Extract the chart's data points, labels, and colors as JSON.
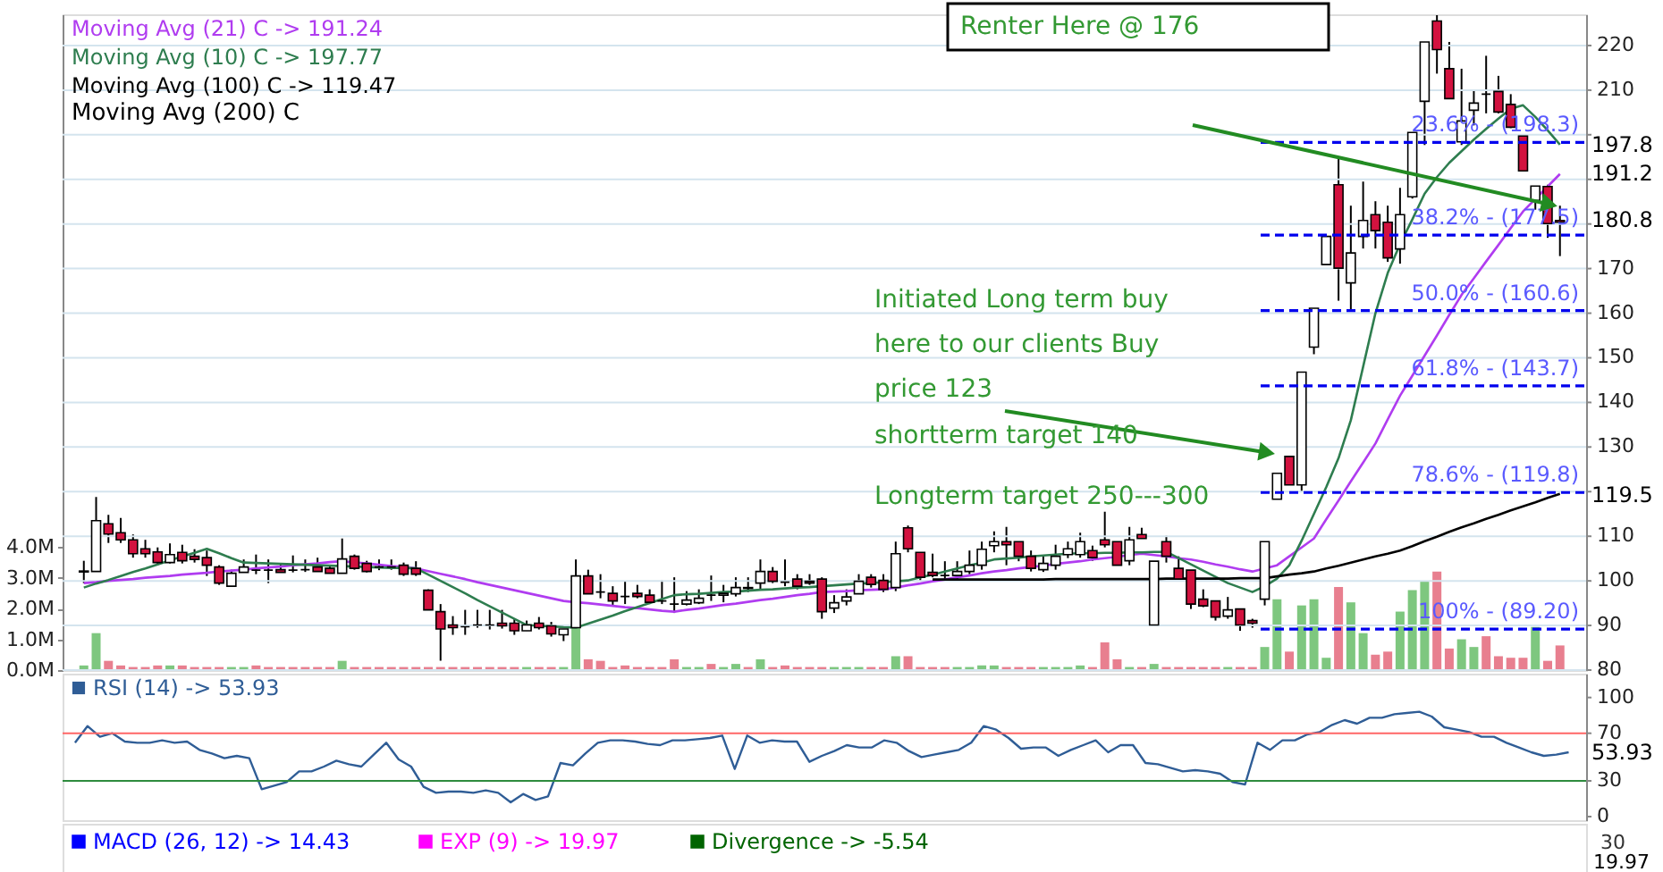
{
  "chart_data": [
    {
      "type": "candlestick",
      "colors": [
        "#ffffff",
        "#ffffff",
        "#d2123f",
        "#d2123f",
        "#d2123f",
        "#d2123f",
        "#d2123f",
        "#ffffff",
        "#d2123f",
        "#d2123f",
        "#d2123f",
        "#d2123f",
        "#ffffff",
        "#ffffff",
        "#000000",
        "#000000",
        "#d2123f",
        "#000000",
        "#000000",
        "#d2123f",
        "#d2123f",
        "#ffffff",
        "#d2123f",
        "#d2123f",
        "#000000",
        "#000000",
        "#d2123f",
        "#d2123f",
        "#d2123f",
        "#d2123f",
        "#d2123f",
        "#000000",
        "#000000",
        "#000000",
        "#d2123f",
        "#d2123f",
        "#ffffff",
        "#d2123f",
        "#d2123f",
        "#ffffff",
        "#ffffff",
        "#d2123f",
        "#000000",
        "#d2123f",
        "#000000",
        "#d2123f",
        "#d2123f",
        "#000000",
        "#000000",
        "#ffffff",
        "#ffffff",
        "#000000",
        "#ffffff",
        "#ffffff",
        "#d2123f",
        "#ffffff",
        "#d2123f",
        "#000000",
        "#d2123f",
        "#d2123f",
        "#d2123f",
        "#ffffff",
        "#ffffff",
        "#ffffff",
        "#d2123f",
        "#d2123f",
        "#ffffff",
        "#d2123f",
        "#d2123f",
        "#d2123f",
        "#000000",
        "#ffffff",
        "#ffffff",
        "#ffffff",
        "#ffffff",
        "#d2123f",
        "#d2123f",
        "#d2123f",
        "#ffffff",
        "#ffffff",
        "#ffffff",
        "#ffffff",
        "#d2123f",
        "#d2123f",
        "#d2123f",
        "#ffffff",
        "#d2123f",
        "#ffffff",
        "#d2123f",
        "#d2123f",
        "#d2123f",
        "#d2123f",
        "#d2123f",
        "#ffffff",
        "#d2123f",
        "#d2123f",
        "#ffffff",
        "#ffffff",
        "#d2123f",
        "#ffffff",
        "#ffffff",
        "#ffffff",
        "#d2123f",
        "#ffffff",
        "#ffffff",
        "#d2123f",
        "#d2123f",
        "#ffffff",
        "#ffffff",
        "#ffffff",
        "#d2123f",
        "#d2123f",
        "#ffffff",
        "#ffffff",
        "#000000",
        "#d2123f",
        "#d2123f",
        "#d2123f",
        "#ffffff",
        "#d2123f",
        "#d2123f"
      ],
      "categories": [
        null,
        null,
        null,
        null,
        null,
        null,
        null,
        null,
        null,
        null,
        null,
        null,
        null,
        null,
        null,
        null,
        null,
        null,
        null,
        null,
        null,
        null,
        null,
        null,
        null,
        null,
        null,
        null,
        null,
        null,
        null,
        null,
        null,
        null,
        null,
        null,
        null,
        null,
        null,
        null,
        null,
        null,
        null,
        null,
        null,
        null,
        null,
        null,
        null,
        null,
        null,
        null,
        null,
        null,
        null,
        null,
        null,
        null,
        null,
        null,
        null,
        null,
        null,
        null,
        null,
        null,
        null,
        null,
        null,
        null,
        null,
        null,
        null,
        null,
        null,
        null,
        null,
        null,
        null,
        null,
        null,
        null,
        null,
        null,
        null,
        null,
        null,
        null,
        null,
        null,
        null,
        null,
        null,
        null,
        null,
        null,
        null,
        null,
        null,
        null,
        null,
        null,
        null,
        null,
        null,
        null,
        null,
        null,
        null,
        null,
        null,
        null,
        null,
        null,
        null,
        null,
        null,
        null,
        null,
        null,
        null
      ],
      "ohlc": [
        [
          102,
          104.5,
          99.5,
          102.2
        ],
        [
          102.1,
          118.8,
          102.1,
          113.5
        ],
        [
          112.8,
          114.8,
          108.5,
          110.5
        ],
        [
          110.8,
          114.1,
          108.5,
          109.2
        ],
        [
          109.2,
          110.4,
          105.2,
          106.1
        ],
        [
          107.2,
          109.2,
          105.2,
          106.1
        ],
        [
          106.5,
          107.5,
          103.5,
          104.1
        ],
        [
          104.1,
          108.4,
          103.9,
          105.9
        ],
        [
          106.4,
          108.1,
          103.9,
          104.5
        ],
        [
          105.5,
          107.1,
          104.1,
          104.8
        ],
        [
          105.2,
          106.8,
          101.1,
          103.5
        ],
        [
          103.1,
          103.5,
          99.1,
          99.5
        ],
        [
          98.8,
          102.5,
          98.8,
          101.7
        ],
        [
          101.9,
          104.8,
          101.9,
          103.1
        ],
        [
          102.4,
          105.9,
          101.5,
          102.4
        ],
        [
          102.4,
          104.8,
          99.5,
          102.4
        ],
        [
          102.5,
          103.9,
          101.9,
          101.9
        ],
        [
          102.4,
          105.7,
          101.9,
          102.4
        ],
        [
          102.5,
          104.8,
          102,
          102.5
        ],
        [
          103.1,
          105.2,
          102.1,
          102.1
        ],
        [
          102.8,
          103.5,
          101.7,
          101.7
        ],
        [
          101.7,
          109.5,
          101.7,
          104.9
        ],
        [
          105.5,
          105.9,
          102.5,
          102.8
        ],
        [
          103.9,
          104.5,
          101.9,
          102.1
        ],
        [
          103.1,
          104.8,
          102.4,
          103.1
        ],
        [
          103.1,
          104.8,
          102.5,
          103.1
        ],
        [
          103.5,
          104.1,
          101.1,
          101.5
        ],
        [
          102.8,
          104.4,
          101.1,
          101.5
        ],
        [
          97.9,
          98.1,
          93.5,
          93.5
        ],
        [
          93.1,
          94.8,
          82.1,
          89.2
        ],
        [
          90.1,
          92.1,
          87.9,
          89.5
        ],
        [
          89.7,
          93.5,
          87.9,
          89.7
        ],
        [
          90.1,
          93.5,
          89.5,
          90.1
        ],
        [
          90.1,
          93.5,
          89.1,
          90.1
        ],
        [
          90.5,
          93.5,
          89.3,
          89.9
        ],
        [
          90.5,
          91.5,
          87.9,
          88.8
        ],
        [
          88.8,
          91.1,
          88.8,
          90.1
        ],
        [
          90.5,
          91.9,
          89.1,
          89.5
        ],
        [
          89.9,
          90.8,
          87.5,
          88.1
        ],
        [
          87.9,
          89.2,
          86.5,
          89.2
        ],
        [
          89.5,
          104.8,
          89.5,
          101.1
        ],
        [
          101.1,
          102.5,
          97.1,
          97.1
        ],
        [
          97.5,
          101.5,
          96.1,
          97.5
        ],
        [
          97.2,
          98.8,
          94.5,
          95.5
        ],
        [
          96.5,
          99.9,
          94.8,
          96.5
        ],
        [
          97.2,
          99.1,
          96.1,
          96.5
        ],
        [
          96.8,
          98.1,
          94.8,
          95.2
        ],
        [
          95.5,
          100.1,
          94.8,
          95.5
        ],
        [
          94.8,
          100.8,
          92.8,
          94.8
        ],
        [
          94.8,
          97.7,
          94.5,
          95.7
        ],
        [
          95.1,
          98.1,
          94.8,
          96.1
        ],
        [
          96.8,
          101.2,
          95.5,
          96.8
        ],
        [
          96.8,
          99.1,
          95.2,
          97.2
        ],
        [
          97.1,
          100.8,
          96.5,
          98.5
        ],
        [
          98.5,
          100.8,
          97.5,
          98.3
        ],
        [
          99.5,
          104.8,
          98.1,
          102.1
        ],
        [
          102.1,
          103.1,
          99.5,
          99.9
        ],
        [
          99.7,
          104.8,
          98.8,
          99.7
        ],
        [
          100.4,
          101.5,
          98.1,
          98.8
        ],
        [
          99.9,
          101.5,
          99.1,
          99.5
        ],
        [
          100.4,
          100.8,
          91.5,
          93.1
        ],
        [
          93.9,
          96.8,
          92.8,
          95.1
        ],
        [
          95.5,
          98.1,
          94.5,
          96.4
        ],
        [
          97.1,
          101.5,
          97.1,
          99.9
        ],
        [
          100.8,
          101.5,
          98.5,
          99.2
        ],
        [
          100.1,
          101.5,
          97.5,
          98.1
        ],
        [
          98.5,
          108.8,
          97.7,
          106.1
        ],
        [
          111.9,
          112.4,
          106.4,
          107.2
        ],
        [
          106.4,
          106.4,
          100.1,
          100.8
        ],
        [
          101.9,
          106.1,
          100.8,
          101.2
        ],
        [
          101.2,
          104.4,
          100.1,
          101.2
        ],
        [
          101.2,
          104.4,
          100.4,
          102.1
        ],
        [
          102.1,
          106.8,
          101.5,
          103.5
        ],
        [
          103.5,
          108.8,
          102.5,
          107.1
        ],
        [
          107.9,
          111.1,
          106.4,
          108.8
        ],
        [
          108.8,
          112.1,
          103.5,
          108.1
        ],
        [
          108.8,
          108.8,
          104.4,
          105.5
        ],
        [
          105.5,
          106.8,
          102.1,
          102.8
        ],
        [
          102.5,
          105.5,
          102,
          103.9
        ],
        [
          103.5,
          108.1,
          102.5,
          105.5
        ],
        [
          105.9,
          108.8,
          105.1,
          107.2
        ],
        [
          105.9,
          110.8,
          105.2,
          108.8
        ],
        [
          106.8,
          107.9,
          104.5,
          105.2
        ],
        [
          109.2,
          115.5,
          107.5,
          108.1
        ],
        [
          108.8,
          108.8,
          103.5,
          103.5
        ],
        [
          104.5,
          112.1,
          103.5,
          109.2
        ],
        [
          110.4,
          111.9,
          109.5,
          109.5
        ],
        [
          90.1,
          104.4,
          90.1,
          104.4
        ],
        [
          108.8,
          110.1,
          104.1,
          105.5
        ],
        [
          102.8,
          105.5,
          100.4,
          100.4
        ],
        [
          102.4,
          102.4,
          93.7,
          94.8
        ],
        [
          95.9,
          98.1,
          94.1,
          94.4
        ],
        [
          95.5,
          95.5,
          91.1,
          91.9
        ],
        [
          92.1,
          96.4,
          91.5,
          93.5
        ],
        [
          93.7,
          93.7,
          88.8,
          90.1
        ],
        [
          91.1,
          91.5,
          89.5,
          90.5
        ],
        [
          95.9,
          108.8,
          94.5,
          108.8
        ],
        [
          118.3,
          124.1,
          118.3,
          124.1
        ],
        [
          127.9,
          127.9,
          121.5,
          121.5
        ],
        [
          121.5,
          146.8,
          120.1,
          146.8
        ],
        [
          152.4,
          161.1,
          150.8,
          161.1
        ],
        [
          170.9,
          177.2,
          170.9,
          177.2
        ],
        [
          188.8,
          194.8,
          162.8,
          170.1
        ],
        [
          166.8,
          184.1,
          160.5,
          173.5
        ],
        [
          177.2,
          189.5,
          174.5,
          180.8
        ],
        [
          182.1,
          185.1,
          174.5,
          178.5
        ],
        [
          180.4,
          184.1,
          171.5,
          172.4
        ],
        [
          174.4,
          188.1,
          171.1,
          182.1
        ],
        [
          186.1,
          200.5,
          185.7,
          200.5
        ],
        [
          207.5,
          220.8,
          197.7,
          220.8
        ],
        [
          225.5,
          226.8,
          213.7,
          219.1
        ],
        [
          214.8,
          220.8,
          208.1,
          208.1
        ],
        [
          198.4,
          214.8,
          197.7,
          203.1
        ],
        [
          205.5,
          210.1,
          202.1,
          207.1
        ],
        [
          209.1,
          217.7,
          204.8,
          209.1
        ],
        [
          209.7,
          213.2,
          204.8,
          205.1
        ],
        [
          206.8,
          209.1,
          201.5,
          201.7
        ],
        [
          199.7,
          199.7,
          191.9,
          191.9
        ],
        [
          185.3,
          188.5,
          183.2,
          188.5
        ],
        [
          188.4,
          188.8,
          176.9,
          180.1
        ],
        [
          180.4,
          184.1,
          172.8,
          180.8
        ]
      ],
      "series": [
        {
          "type": "line",
          "name": "Moving Avg (21) C -> 191.24",
          "color": "#b03cf0",
          "values": [
            99.5,
            99.7,
            100,
            100.2,
            100.4,
            100.7,
            100.9,
            101.1,
            101.4,
            101.6,
            101.8,
            102.1,
            102.3,
            102.5,
            102.8,
            103,
            103.2,
            103.5,
            103.7,
            103.9,
            104.2,
            104.4,
            104.1,
            103.9,
            103.6,
            103.3,
            103.1,
            102.8,
            102.2,
            101.6,
            101,
            100.4,
            99.7,
            99.1,
            98.5,
            97.9,
            97.3,
            96.7,
            96.1,
            95.5,
            95.2,
            95,
            94.7,
            94.4,
            94.1,
            93.9,
            93.6,
            93.3,
            93.1,
            93.5,
            93.8,
            94.2,
            94.6,
            94.9,
            95.3,
            95.7,
            96,
            96.4,
            96.8,
            97.1,
            97.5,
            97.6,
            97.7,
            97.9,
            98,
            98.1,
            98.5,
            99,
            99.4,
            99.9,
            100.3,
            100.8,
            101.2,
            101.7,
            102.1,
            102.4,
            102.8,
            103.1,
            103.4,
            103.8,
            104.1,
            104.4,
            104.8,
            105.1,
            105.4,
            105.8,
            106.1,
            105.8,
            105.5,
            105.1,
            104.8,
            104.3,
            103.7,
            103.2,
            102.6,
            102.1,
            102.8,
            103.5,
            105.5,
            107.5,
            109.5,
            113.8,
            118,
            122.3,
            126.5,
            130.8,
            136.2,
            141.5,
            146,
            150.5,
            155,
            159.6,
            164.1,
            167.8,
            171.6,
            175.3,
            179.1,
            182.8,
            185.6,
            188.4,
            191.2
          ]
        },
        {
          "type": "line",
          "name": "Moving Avg (10) C -> 197.77",
          "color": "#2e7d4f",
          "values": [
            98.5,
            99.4,
            100.2,
            101.1,
            102,
            102.8,
            103.7,
            104.6,
            105.5,
            106.3,
            107.2,
            106.2,
            105.1,
            104.1,
            104,
            103.9,
            103.8,
            103.7,
            103.6,
            103.5,
            103.4,
            103.3,
            103.2,
            103.1,
            103,
            102.9,
            102.9,
            102.8,
            101.4,
            100,
            98.6,
            97.2,
            95.7,
            94.3,
            92.9,
            91.5,
            90.1,
            89.9,
            89.8,
            89.6,
            89.5,
            90.4,
            91.3,
            92.2,
            93.2,
            94.1,
            95,
            95.9,
            96.8,
            97,
            97.1,
            97.3,
            97.5,
            97.6,
            97.8,
            98,
            98.1,
            98.3,
            98.5,
            98.6,
            98.8,
            99,
            99.2,
            99.4,
            99.5,
            99.7,
            99.9,
            100.1,
            100.8,
            101.4,
            102.1,
            102.8,
            103.5,
            104.1,
            104.8,
            105,
            105.2,
            105.5,
            105.7,
            105.9,
            106.1,
            106.2,
            106.2,
            106.3,
            106.3,
            106.4,
            106.4,
            106.5,
            106.5,
            105.1,
            103.7,
            102.3,
            100.9,
            99.5,
            98.5,
            97.5,
            98.8,
            100.5,
            103.5,
            109,
            115,
            121,
            127.5,
            136,
            148,
            160,
            169,
            175.5,
            181,
            186.8,
            190.5,
            193.7,
            196.3,
            198.9,
            201.3,
            203.6,
            205.8,
            206.6,
            204,
            201,
            197.8
          ]
        },
        {
          "type": "line",
          "name": "Moving Avg (100) C -> 119.47",
          "color": "#000000",
          "values": [
            null,
            null,
            null,
            null,
            null,
            null,
            null,
            null,
            null,
            null,
            null,
            null,
            null,
            null,
            null,
            null,
            null,
            null,
            null,
            null,
            null,
            null,
            null,
            null,
            null,
            null,
            null,
            null,
            null,
            null,
            null,
            null,
            null,
            null,
            null,
            null,
            null,
            null,
            null,
            null,
            null,
            null,
            null,
            null,
            null,
            null,
            null,
            null,
            null,
            null,
            null,
            null,
            null,
            null,
            null,
            null,
            null,
            null,
            null,
            null,
            null,
            null,
            null,
            null,
            null,
            null,
            null,
            null,
            null,
            100.3,
            100.3,
            100.3,
            100.3,
            100.3,
            100.3,
            100.3,
            100.3,
            100.3,
            100.3,
            100.4,
            100.4,
            100.4,
            100.4,
            100.4,
            100.4,
            100.4,
            100.4,
            100.4,
            100.5,
            100.5,
            100.5,
            100.5,
            100.5,
            100.5,
            100.6,
            100.6,
            100.6,
            101,
            101.4,
            101.7,
            102.1,
            102.8,
            103.4,
            104.1,
            104.8,
            105.5,
            106.1,
            106.8,
            107.8,
            108.9,
            109.9,
            111,
            112,
            112.9,
            113.9,
            114.8,
            115.8,
            116.7,
            117.6,
            118.6,
            119.5
          ]
        },
        {
          "type": "bar",
          "axis": "y2",
          "values": [
            0.15,
            1.2,
            0.3,
            0.15,
            0.1,
            0.1,
            0.15,
            0.15,
            0.15,
            0.1,
            0.1,
            0.1,
            0.1,
            0.1,
            0.15,
            0.1,
            0.1,
            0.1,
            0.1,
            0.1,
            0.1,
            0.3,
            0.1,
            0.1,
            0.1,
            0.1,
            0.1,
            0.1,
            0.1,
            0.1,
            0.1,
            0.1,
            0.1,
            0.1,
            0.1,
            0.1,
            0.1,
            0.1,
            0.1,
            0.1,
            1.4,
            0.35,
            0.3,
            0.1,
            0.15,
            0.1,
            0.1,
            0.1,
            0.35,
            0.1,
            0.1,
            0.2,
            0.1,
            0.2,
            0.1,
            0.35,
            0.1,
            0.15,
            0.1,
            0.1,
            0.1,
            0.1,
            0.1,
            0.1,
            0.1,
            0.1,
            0.45,
            0.45,
            0.1,
            0.1,
            0.1,
            0.1,
            0.1,
            0.15,
            0.15,
            0.1,
            0.1,
            0.1,
            0.1,
            0.1,
            0.1,
            0.15,
            0.1,
            0.9,
            0.35,
            0.1,
            0.1,
            0.2,
            0.1,
            0.1,
            0.1,
            0.1,
            0.1,
            0.1,
            0.1,
            0.1,
            0.75,
            2.3,
            0.6,
            2.1,
            2.3,
            0.4,
            2.7,
            2.2,
            1.2,
            0.5,
            0.6,
            1.9,
            2.6,
            2.9,
            3.2,
            0.7,
            1.0,
            0.75,
            1.1,
            0.45,
            0.4,
            0.4,
            1.4,
            0.3,
            0.8
          ],
          "colors": [
            "#7ec77f",
            "#7ec77f",
            "#e87f8f",
            "#e87f8f",
            "#e87f8f",
            "#e87f8f",
            "#e87f8f",
            "#7ec77f",
            "#e87f8f",
            "#e87f8f",
            "#e87f8f",
            "#e87f8f",
            "#7ec77f",
            "#7ec77f",
            "#e87f8f",
            "#e87f8f",
            "#e87f8f",
            "#e87f8f",
            "#e87f8f",
            "#e87f8f",
            "#e87f8f",
            "#7ec77f",
            "#e87f8f",
            "#e87f8f",
            "#e87f8f",
            "#e87f8f",
            "#e87f8f",
            "#e87f8f",
            "#e87f8f",
            "#e87f8f",
            "#e87f8f",
            "#e87f8f",
            "#e87f8f",
            "#e87f8f",
            "#e87f8f",
            "#e87f8f",
            "#7ec77f",
            "#e87f8f",
            "#e87f8f",
            "#7ec77f",
            "#7ec77f",
            "#e87f8f",
            "#e87f8f",
            "#e87f8f",
            "#e87f8f",
            "#e87f8f",
            "#e87f8f",
            "#e87f8f",
            "#e87f8f",
            "#7ec77f",
            "#7ec77f",
            "#e87f8f",
            "#7ec77f",
            "#7ec77f",
            "#e87f8f",
            "#7ec77f",
            "#e87f8f",
            "#e87f8f",
            "#e87f8f",
            "#e87f8f",
            "#e87f8f",
            "#7ec77f",
            "#7ec77f",
            "#7ec77f",
            "#e87f8f",
            "#e87f8f",
            "#7ec77f",
            "#e87f8f",
            "#e87f8f",
            "#e87f8f",
            "#e87f8f",
            "#7ec77f",
            "#7ec77f",
            "#7ec77f",
            "#7ec77f",
            "#e87f8f",
            "#e87f8f",
            "#e87f8f",
            "#7ec77f",
            "#7ec77f",
            "#7ec77f",
            "#7ec77f",
            "#e87f8f",
            "#e87f8f",
            "#e87f8f",
            "#7ec77f",
            "#e87f8f",
            "#7ec77f",
            "#e87f8f",
            "#e87f8f",
            "#e87f8f",
            "#e87f8f",
            "#e87f8f",
            "#7ec77f",
            "#e87f8f",
            "#e87f8f",
            "#7ec77f",
            "#7ec77f",
            "#e87f8f",
            "#7ec77f",
            "#7ec77f",
            "#7ec77f",
            "#e87f8f",
            "#7ec77f",
            "#7ec77f",
            "#e87f8f",
            "#e87f8f",
            "#7ec77f",
            "#7ec77f",
            "#7ec77f",
            "#e87f8f",
            "#e87f8f",
            "#7ec77f",
            "#7ec77f",
            "#e87f8f",
            "#e87f8f",
            "#e87f8f",
            "#e87f8f",
            "#7ec77f",
            "#e87f8f",
            "#e87f8f"
          ]
        }
      ],
      "ylim": [
        80,
        227
      ],
      "yticks": [
        80,
        90,
        100,
        110,
        {
          "value": 120,
          "label": null
        },
        130,
        140,
        150,
        160,
        170,
        {
          "value": 180,
          "label": null
        },
        {
          "value": 190,
          "label": null
        },
        {
          "value": 200,
          "label": null
        },
        210,
        220
      ],
      "y2lim": [
        0,
        21.3
      ],
      "y2ticks": [
        {
          "value": 0,
          "label": "0.0M"
        },
        {
          "value": 1,
          "label": "1.0M"
        },
        {
          "value": 2,
          "label": "2.0M"
        },
        {
          "value": 3,
          "label": "3.0M"
        },
        {
          "value": 4,
          "label": "4.0M"
        }
      ],
      "ref_lines": [
        {
          "axis": "y",
          "value": 198.3,
          "label": "23.6% - (198.3)",
          "color": "#0000ee",
          "line_style": "dashed"
        },
        {
          "axis": "y",
          "value": 177.5,
          "label": "38.2% - (177.5)",
          "color": "#0000ee",
          "line_style": "dashed"
        },
        {
          "axis": "y",
          "value": 160.6,
          "label": "50.0% - (160.6)",
          "color": "#0000ee",
          "line_style": "dashed"
        },
        {
          "axis": "y",
          "value": 143.7,
          "label": "61.8% - (143.7)",
          "color": "#0000ee",
          "line_style": "dashed"
        },
        {
          "axis": "y",
          "value": 119.8,
          "label": "78.6% - (119.8)",
          "color": "#0000ee",
          "line_style": "dashed"
        },
        {
          "axis": "y",
          "value": 89.2,
          "label": "100% - (89.20)",
          "color": "#0000ee",
          "line_style": "dashed"
        }
      ],
      "annotations": [
        "Initiated Long term buy\nhere to our clients Buy\nprice 123",
        "shortterm target 140",
        "Longterm target 250---300",
        "Renter Here @ 176",
        "Moving Avg (200) C",
        "197.8",
        "191.2",
        "180.8",
        "119.5"
      ],
      "grid": "y",
      "legend": "top left"
    },
    {
      "type": "line",
      "categories": [
        null,
        null,
        null,
        null,
        null,
        null,
        null,
        null,
        null,
        null,
        null,
        null,
        null,
        null,
        null,
        null,
        null,
        null,
        null,
        null,
        null,
        null,
        null,
        null,
        null,
        null,
        null,
        null,
        null,
        null,
        null,
        null,
        null,
        null,
        null,
        null,
        null,
        null,
        null,
        null,
        null,
        null,
        null,
        null,
        null,
        null,
        null,
        null,
        null,
        null,
        null,
        null,
        null,
        null,
        null,
        null,
        null,
        null,
        null,
        null,
        null,
        null,
        null,
        null,
        null,
        null,
        null,
        null,
        null,
        null,
        null,
        null,
        null,
        null,
        null,
        null,
        null,
        null,
        null,
        null,
        null,
        null,
        null,
        null,
        null,
        null,
        null,
        null,
        null,
        null,
        null,
        null,
        null,
        null,
        null,
        null,
        null,
        null,
        null,
        null,
        null,
        null,
        null,
        null,
        null,
        null,
        null,
        null,
        null,
        null,
        null,
        null,
        null,
        null,
        null,
        null,
        null,
        null,
        null,
        null,
        null
      ],
      "series": [
        {
          "name": "RSI (14) -> 53.93",
          "color": "#2f5d96",
          "values": [
            62,
            76,
            67,
            70,
            63,
            62,
            62,
            64,
            62,
            63,
            56,
            53,
            49,
            51,
            49,
            23,
            26,
            29,
            38,
            38,
            42,
            47,
            44,
            42,
            52,
            62,
            48,
            42,
            25,
            20,
            21,
            21,
            20,
            22,
            20,
            12,
            19,
            14,
            17,
            45,
            43,
            53,
            62,
            64,
            64,
            63,
            61,
            60,
            64,
            64,
            65,
            66,
            68,
            40,
            68,
            62,
            64,
            63,
            63,
            46,
            51,
            55,
            60,
            58,
            58,
            64,
            62,
            55,
            50,
            52,
            54,
            56,
            62,
            76,
            73,
            66,
            57,
            58,
            58,
            51,
            56,
            60,
            64,
            54,
            60,
            60,
            45,
            44,
            41,
            38,
            39,
            38,
            36,
            29,
            27,
            62,
            56,
            64,
            64,
            69,
            71,
            77,
            81,
            78,
            83,
            83,
            86,
            87,
            88,
            84,
            75,
            73,
            71,
            67,
            67,
            62,
            58,
            54,
            51,
            52,
            54
          ]
        }
      ],
      "ylim": [
        -3,
        120
      ],
      "yticks": [
        0,
        30,
        70,
        100
      ],
      "ref_lines": [
        {
          "axis": "y",
          "value": 70,
          "color": "#ff6666"
        },
        {
          "axis": "y",
          "value": 30,
          "color": "#2e8b3e"
        }
      ],
      "annotations": [
        "53.93"
      ],
      "legend": "top left"
    },
    {
      "type": "other",
      "series": [
        {
          "name": "MACD (26, 12) -> 14.43",
          "color": "#0000ff"
        },
        {
          "name": "EXP (9) -> 19.97",
          "color": "#ff00ff"
        },
        {
          "name": "Divergence -> -5.54",
          "color": "#006400"
        }
      ],
      "annotations": [
        "30",
        "19.97"
      ],
      "legend": "top left"
    }
  ]
}
